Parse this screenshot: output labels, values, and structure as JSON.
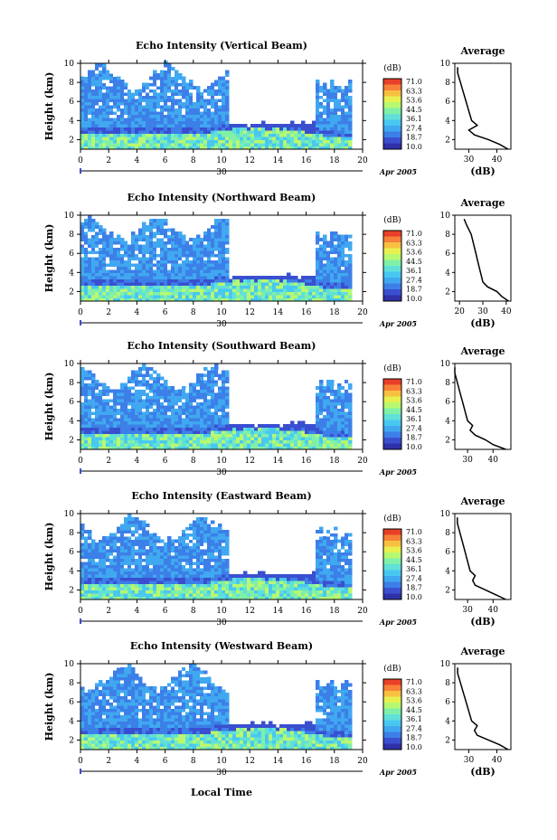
{
  "figure": {
    "xlabel": "Local Time",
    "date_label": "30",
    "month_label": "Apr 2005",
    "legend_unit": "(dB)",
    "legend_levels": [
      "71.0",
      "63.3",
      "53.6",
      "44.5",
      "36.1",
      "27.4",
      "18.7",
      "10.0"
    ],
    "colormap": [
      "#ffffff",
      "#3030a8",
      "#3a4fd0",
      "#3c7fe8",
      "#40a8f0",
      "#48c8f0",
      "#60e0d8",
      "#80f0a8",
      "#b8f870",
      "#e8f050",
      "#f8c040",
      "#f88038",
      "#e84028"
    ],
    "average_title": "Average",
    "average_xlabel": "(dB)"
  },
  "chart_data": [
    {
      "type": "heatmap",
      "title": "Echo Intensity (Vertical Beam)",
      "ylabel": "Height (km)",
      "xlim": [
        0,
        20
      ],
      "ylim": [
        1,
        10
      ],
      "xticks": [
        0,
        2,
        4,
        6,
        8,
        10,
        12,
        14,
        16,
        18,
        20
      ],
      "yticks": [
        2,
        4,
        6,
        8,
        10
      ],
      "colorbar": {
        "label": "(dB)",
        "levels": [
          71.0,
          63.3,
          53.6,
          44.5,
          36.1,
          27.4,
          18.7,
          10.0
        ]
      },
      "average_profile": {
        "title": "Average",
        "xlabel": "(dB)",
        "xticks": [
          30,
          40
        ],
        "xlim": [
          25,
          45
        ],
        "height": [
          1.0,
          1.5,
          2.0,
          2.5,
          3.0,
          3.5,
          4.0,
          5.0,
          6.0,
          7.0,
          8.0,
          9.0,
          9.6
        ],
        "value": [
          44,
          41,
          37,
          32,
          30,
          33,
          31,
          30,
          29,
          28,
          27,
          26,
          26
        ]
      }
    },
    {
      "type": "heatmap",
      "title": "Echo Intensity (Northward Beam)",
      "ylabel": "Height (km)",
      "xlim": [
        0,
        20
      ],
      "ylim": [
        1,
        10
      ],
      "xticks": [
        0,
        2,
        4,
        6,
        8,
        10,
        12,
        14,
        16,
        18,
        20
      ],
      "yticks": [
        2,
        4,
        6,
        8,
        10
      ],
      "colorbar": {
        "label": "(dB)",
        "levels": [
          71.0,
          63.3,
          53.6,
          44.5,
          36.1,
          27.4,
          18.7,
          10.0
        ]
      },
      "average_profile": {
        "title": "Average",
        "xlabel": "(dB)",
        "xticks": [
          20,
          30,
          40
        ],
        "xlim": [
          18,
          42
        ],
        "height": [
          1.0,
          1.5,
          2.0,
          2.5,
          3.0,
          4.0,
          5.0,
          6.0,
          7.0,
          8.0,
          9.0,
          9.6
        ],
        "value": [
          41,
          38,
          36,
          32,
          30,
          29,
          28,
          27,
          26,
          25,
          23,
          22
        ]
      }
    },
    {
      "type": "heatmap",
      "title": "Echo Intensity (Southward Beam)",
      "ylabel": "Height (km)",
      "xlim": [
        0,
        20
      ],
      "ylim": [
        1,
        10
      ],
      "xticks": [
        0,
        2,
        4,
        6,
        8,
        10,
        12,
        14,
        16,
        18,
        20
      ],
      "yticks": [
        2,
        4,
        6,
        8,
        10
      ],
      "colorbar": {
        "label": "(dB)",
        "levels": [
          71.0,
          63.3,
          53.6,
          44.5,
          36.1,
          27.4,
          18.7,
          10.0
        ]
      },
      "average_profile": {
        "title": "Average",
        "xlabel": "",
        "xticks": [
          30,
          40
        ],
        "xlim": [
          25,
          47
        ],
        "height": [
          1.0,
          1.5,
          2.0,
          2.5,
          3.0,
          3.5,
          4.0,
          5.0,
          6.0,
          7.0,
          8.0,
          9.0,
          9.6
        ],
        "value": [
          45,
          40,
          37,
          33,
          31,
          32,
          30,
          29,
          28,
          27,
          26,
          25,
          25
        ]
      }
    },
    {
      "type": "heatmap",
      "title": "Echo Intensity (Eastward Beam)",
      "ylabel": "Height (km)",
      "xlim": [
        0,
        20
      ],
      "ylim": [
        1,
        10
      ],
      "xticks": [
        0,
        2,
        4,
        6,
        8,
        10,
        12,
        14,
        16,
        18,
        20
      ],
      "yticks": [
        2,
        4,
        6,
        8,
        10
      ],
      "colorbar": {
        "label": "(dB)",
        "levels": [
          71.0,
          63.3,
          53.6,
          44.5,
          36.1,
          27.4,
          18.7,
          10.0
        ]
      },
      "average_profile": {
        "title": "Average",
        "xlabel": "(dB)",
        "xticks": [
          30,
          40
        ],
        "xlim": [
          25,
          47
        ],
        "height": [
          1.0,
          1.5,
          2.0,
          2.5,
          3.0,
          3.5,
          4.0,
          5.0,
          6.0,
          7.0,
          8.0,
          9.0,
          9.6
        ],
        "value": [
          45,
          41,
          37,
          33,
          32,
          33,
          31,
          30,
          29,
          28,
          27,
          26,
          26
        ]
      }
    },
    {
      "type": "heatmap",
      "title": "Echo Intensity (Westward Beam)",
      "ylabel": "Height (km)",
      "xlim": [
        0,
        20
      ],
      "ylim": [
        1,
        10
      ],
      "xticks": [
        0,
        2,
        4,
        6,
        8,
        10,
        12,
        14,
        16,
        18,
        20
      ],
      "yticks": [
        2,
        4,
        6,
        8,
        10
      ],
      "colorbar": {
        "label": "(dB)",
        "levels": [
          71.0,
          63.3,
          53.6,
          44.5,
          36.1,
          27.4,
          18.7,
          10.0
        ]
      },
      "average_profile": {
        "title": "Average",
        "xlabel": "(dB)",
        "xticks": [
          30,
          40
        ],
        "xlim": [
          25,
          45
        ],
        "height": [
          1.0,
          1.5,
          2.0,
          2.5,
          3.0,
          3.5,
          4.0,
          5.0,
          6.0,
          7.0,
          8.0,
          9.0,
          9.6
        ],
        "value": [
          44,
          41,
          37,
          33,
          32,
          33,
          31,
          30,
          29,
          28,
          27,
          26,
          26
        ]
      }
    }
  ]
}
